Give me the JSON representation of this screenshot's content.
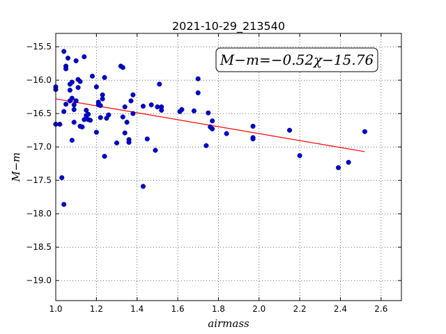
{
  "chart_data": {
    "type": "scatter",
    "title": "2021-10-29_213540",
    "xlabel": "airmass",
    "ylabel": "M−m",
    "xlim": [
      1.0,
      2.7
    ],
    "ylim": [
      -15.3,
      -19.3
    ],
    "y_inverted": true,
    "xticks": [
      "1.0",
      "1.2",
      "1.4",
      "1.6",
      "1.8",
      "2.0",
      "2.2",
      "2.4",
      "2.6"
    ],
    "yticks": [
      "−15.5",
      "−16.0",
      "−16.5",
      "−17.0",
      "−17.5",
      "−18.0",
      "−18.5",
      "−19.0"
    ],
    "grid": true,
    "annotation": "M−m=−0.52χ−15.76",
    "annotation_position": "top-right",
    "colors": {
      "points": "#0000cc",
      "fit": "#ff0000"
    },
    "fit": {
      "slope": -0.52,
      "intercept": -15.76,
      "x_range": [
        1.0,
        2.52
      ]
    },
    "points": [
      [
        1.0,
        -16.1
      ],
      [
        1.0,
        -16.14
      ],
      [
        1.0,
        -16.66
      ],
      [
        1.02,
        -16.66
      ],
      [
        1.03,
        -17.46
      ],
      [
        1.04,
        -17.86
      ],
      [
        1.04,
        -15.57
      ],
      [
        1.04,
        -16.47
      ],
      [
        1.05,
        -15.79
      ],
      [
        1.05,
        -15.83
      ],
      [
        1.05,
        -16.36
      ],
      [
        1.06,
        -15.67
      ],
      [
        1.07,
        -16.06
      ],
      [
        1.07,
        -16.15
      ],
      [
        1.07,
        -16.31
      ],
      [
        1.08,
        -16.03
      ],
      [
        1.08,
        -16.27
      ],
      [
        1.08,
        -16.9
      ],
      [
        1.09,
        -16.63
      ],
      [
        1.09,
        -16.37
      ],
      [
        1.09,
        -16.44
      ],
      [
        1.1,
        -15.71
      ],
      [
        1.1,
        -16.31
      ],
      [
        1.11,
        -15.99
      ],
      [
        1.11,
        -16.11
      ],
      [
        1.12,
        -16.02
      ],
      [
        1.12,
        -16.69
      ],
      [
        1.13,
        -16.7
      ],
      [
        1.14,
        -15.65
      ],
      [
        1.14,
        -16.59
      ],
      [
        1.15,
        -16.45
      ],
      [
        1.15,
        -16.53
      ],
      [
        1.16,
        -16.59
      ],
      [
        1.16,
        -16.51
      ],
      [
        1.17,
        -16.6
      ],
      [
        1.18,
        -15.94
      ],
      [
        1.2,
        -16.78
      ],
      [
        1.2,
        -16.1
      ],
      [
        1.21,
        -16.33
      ],
      [
        1.21,
        -16.37
      ],
      [
        1.22,
        -16.38
      ],
      [
        1.22,
        -16.56
      ],
      [
        1.23,
        -16.22
      ],
      [
        1.23,
        -16.28
      ],
      [
        1.24,
        -15.96
      ],
      [
        1.24,
        -17.14
      ],
      [
        1.25,
        -16.57
      ],
      [
        1.26,
        -16.52
      ],
      [
        1.3,
        -16.94
      ],
      [
        1.32,
        -15.79
      ],
      [
        1.33,
        -15.81
      ],
      [
        1.33,
        -16.55
      ],
      [
        1.34,
        -16.79
      ],
      [
        1.34,
        -16.4
      ],
      [
        1.35,
        -16.63
      ],
      [
        1.36,
        -16.89
      ],
      [
        1.36,
        -16.93
      ],
      [
        1.37,
        -16.31
      ],
      [
        1.38,
        -16.22
      ],
      [
        1.38,
        -16.5
      ],
      [
        1.43,
        -17.59
      ],
      [
        1.43,
        -16.39
      ],
      [
        1.45,
        -16.88
      ],
      [
        1.47,
        -16.37
      ],
      [
        1.49,
        -17.05
      ],
      [
        1.5,
        -16.4
      ],
      [
        1.51,
        -16.06
      ],
      [
        1.52,
        -16.4
      ],
      [
        1.52,
        -16.45
      ],
      [
        1.61,
        -16.47
      ],
      [
        1.62,
        -16.44
      ],
      [
        1.68,
        -16.46
      ],
      [
        1.7,
        -15.98
      ],
      [
        1.7,
        -16.19
      ],
      [
        1.74,
        -16.98
      ],
      [
        1.75,
        -16.49
      ],
      [
        1.76,
        -16.7
      ],
      [
        1.77,
        -16.61
      ],
      [
        1.77,
        -16.73
      ],
      [
        1.84,
        -16.8
      ],
      [
        1.97,
        -16.69
      ],
      [
        1.97,
        -16.86
      ],
      [
        1.97,
        -16.88
      ],
      [
        2.15,
        -16.75
      ],
      [
        2.2,
        -17.13
      ],
      [
        2.39,
        -17.31
      ],
      [
        2.44,
        -17.23
      ],
      [
        2.52,
        -16.77
      ]
    ]
  }
}
